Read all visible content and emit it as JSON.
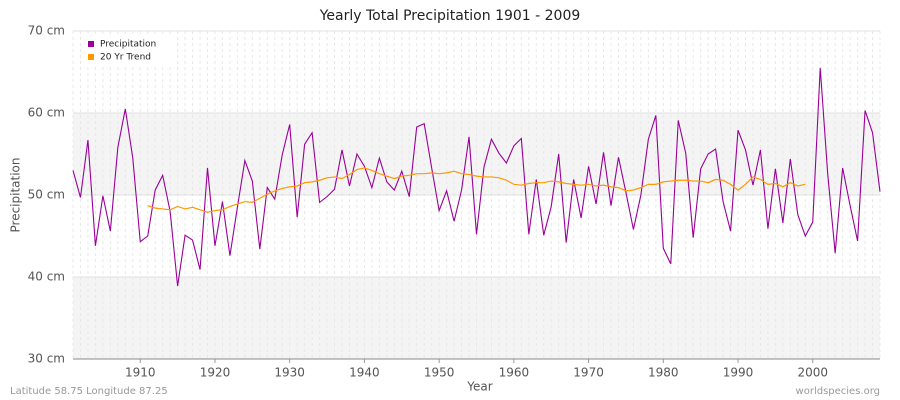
{
  "chart_data": {
    "type": "line",
    "title": "Yearly Total Precipitation 1901 - 2009",
    "x_label": "Year",
    "y_label": "Precipitation",
    "footer_left": "Latitude 58.75 Longitude 87.25",
    "footer_right": "worldspecies.org",
    "legend_position": "upper left",
    "grid": true,
    "xlim": [
      1901,
      2009
    ],
    "xticks": [
      1910,
      1920,
      1930,
      1940,
      1950,
      1960,
      1970,
      1980,
      1990,
      2000
    ],
    "ylim": [
      30,
      70
    ],
    "yticks": [
      {
        "value": 30,
        "label": "30 cm"
      },
      {
        "value": 40,
        "label": "40 cm"
      },
      {
        "value": 50,
        "label": "50 cm"
      },
      {
        "value": 60,
        "label": "60 cm"
      },
      {
        "value": 70,
        "label": "70 cm"
      }
    ],
    "x": [
      1901,
      1902,
      1903,
      1904,
      1905,
      1906,
      1907,
      1908,
      1909,
      1910,
      1911,
      1912,
      1913,
      1914,
      1915,
      1916,
      1917,
      1918,
      1919,
      1920,
      1921,
      1922,
      1923,
      1924,
      1925,
      1926,
      1927,
      1928,
      1929,
      1930,
      1931,
      1932,
      1933,
      1934,
      1935,
      1936,
      1937,
      1938,
      1939,
      1940,
      1941,
      1942,
      1943,
      1944,
      1945,
      1946,
      1947,
      1948,
      1949,
      1950,
      1951,
      1952,
      1953,
      1954,
      1955,
      1956,
      1957,
      1958,
      1959,
      1960,
      1961,
      1962,
      1963,
      1964,
      1965,
      1966,
      1967,
      1968,
      1969,
      1970,
      1971,
      1972,
      1973,
      1974,
      1975,
      1976,
      1977,
      1978,
      1979,
      1980,
      1981,
      1982,
      1983,
      1984,
      1985,
      1986,
      1987,
      1988,
      1989,
      1990,
      1991,
      1992,
      1993,
      1994,
      1995,
      1996,
      1997,
      1998,
      1999,
      2000,
      2001,
      2002,
      2003,
      2004,
      2005,
      2006,
      2007,
      2008,
      2009
    ],
    "series": [
      {
        "name": "Precipitation",
        "color": "#990099",
        "values": [
          53.0,
          49.7,
          56.7,
          43.8,
          49.9,
          45.6,
          55.8,
          60.5,
          54.5,
          44.3,
          45.0,
          50.6,
          52.4,
          48.0,
          38.9,
          45.1,
          44.5,
          40.9,
          53.3,
          43.8,
          49.2,
          42.6,
          48.5,
          54.2,
          51.7,
          43.4,
          50.9,
          49.5,
          54.9,
          58.6,
          47.3,
          56.2,
          57.6,
          49.1,
          49.8,
          50.7,
          55.5,
          51.1,
          55.0,
          53.5,
          50.9,
          54.5,
          51.6,
          50.6,
          52.9,
          49.8,
          58.3,
          58.7,
          53.3,
          48.1,
          50.5,
          46.8,
          50.6,
          57.1,
          45.2,
          53.4,
          56.8,
          55.1,
          53.9,
          56.0,
          56.9,
          45.2,
          51.9,
          45.1,
          48.6,
          55.0,
          44.2,
          51.9,
          47.2,
          53.5,
          48.9,
          55.2,
          48.7,
          54.6,
          50.3,
          45.8,
          50.0,
          56.8,
          59.7,
          43.5,
          41.6,
          59.1,
          55.1,
          44.8,
          53.2,
          55.0,
          55.6,
          49.2,
          45.6,
          57.9,
          55.5,
          51.2,
          55.5,
          45.9,
          53.2,
          46.6,
          54.4,
          47.6,
          45.0,
          46.7,
          65.5,
          52.6,
          42.9,
          53.3,
          48.7,
          44.4,
          60.3,
          57.6,
          50.4
        ]
      },
      {
        "name": "20 Yr Trend",
        "color": "#ff9900",
        "values": [
          null,
          null,
          null,
          null,
          null,
          null,
          null,
          null,
          null,
          null,
          48.7,
          48.4,
          48.3,
          48.2,
          48.6,
          48.3,
          48.5,
          48.2,
          47.9,
          48.1,
          48.2,
          48.6,
          48.9,
          49.2,
          49.1,
          49.6,
          50.1,
          50.5,
          50.8,
          51.0,
          51.1,
          51.5,
          51.6,
          51.8,
          52.1,
          52.2,
          52.0,
          52.5,
          53.1,
          53.3,
          53.0,
          52.6,
          52.3,
          52.0,
          52.3,
          52.4,
          52.6,
          52.6,
          52.7,
          52.6,
          52.7,
          52.9,
          52.6,
          52.5,
          52.3,
          52.2,
          52.2,
          52.1,
          51.8,
          51.3,
          51.2,
          51.4,
          51.5,
          51.5,
          51.7,
          51.6,
          51.4,
          51.3,
          51.2,
          51.3,
          51.1,
          51.2,
          51.0,
          50.9,
          50.5,
          50.6,
          50.9,
          51.3,
          51.3,
          51.6,
          51.7,
          51.8,
          51.8,
          51.7,
          51.7,
          51.5,
          51.9,
          51.8,
          51.3,
          50.6,
          51.3,
          52.2,
          51.9,
          51.3,
          51.4,
          51.0,
          51.5,
          51.1,
          51.3,
          null,
          null,
          null,
          null,
          null,
          null,
          null,
          null,
          null,
          null
        ]
      }
    ]
  }
}
